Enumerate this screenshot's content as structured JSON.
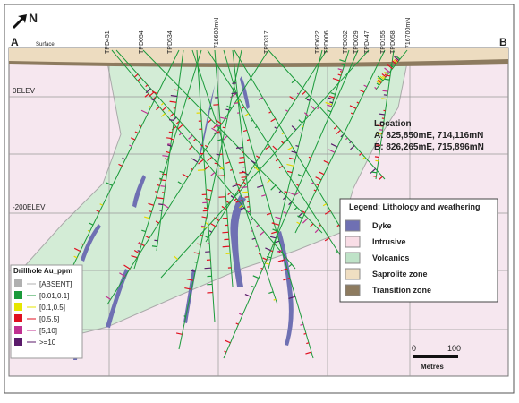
{
  "header": {
    "north": "N",
    "section_start": "A",
    "section_end": "B",
    "surface": "Surface"
  },
  "collar_labels": [
    "TPD451",
    "TPD054",
    "TPD534",
    "716600mN",
    "TPD317",
    "TPD622",
    "TPD006",
    "TPD032",
    "TPD029",
    "TPD447",
    "TPD155",
    "TPD058",
    "716700mN"
  ],
  "elevation_labels": [
    "0ELEV",
    "-200ELEV"
  ],
  "location": {
    "title": "Location",
    "a": "A: 825,850mE, 714,116mN",
    "b": "B: 826,265mE, 715,896mN"
  },
  "lithology_legend": {
    "title": "Legend: Lithology and weathering",
    "items": [
      "Dyke",
      "Intrusive",
      "Volcanics",
      "Saprolite zone",
      "Transition zone"
    ]
  },
  "assay_legend": {
    "title": "Drillhole Au_ppm",
    "items": [
      "[ABSENT]",
      "[0.01,0.1]",
      "[0.1,0.5]",
      "[0.5,5]",
      "[5,10]",
      ">=10"
    ]
  },
  "scale_bar": {
    "start": "0",
    "end": "100",
    "unit": "Metres"
  }
}
